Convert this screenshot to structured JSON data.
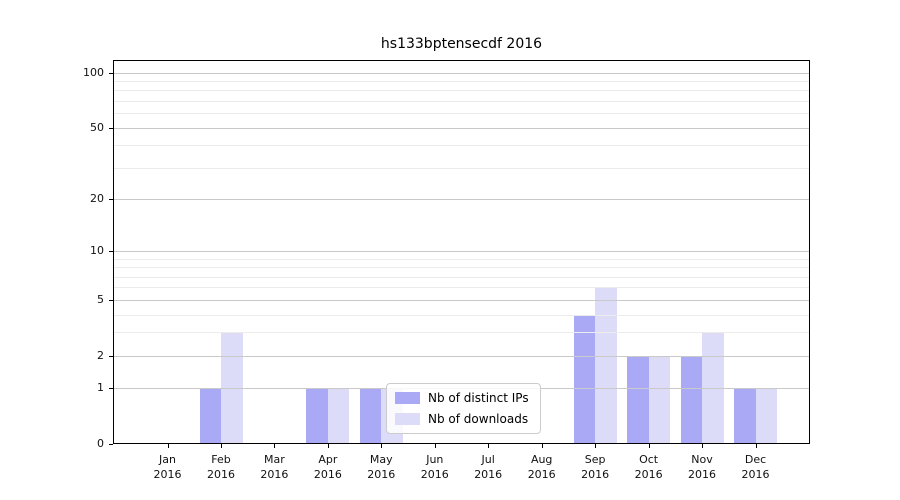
{
  "title": "hs133bptensecdf 2016",
  "legend": {
    "items": [
      {
        "label": "Nb of distinct IPs",
        "color": "#a9a9f5"
      },
      {
        "label": "Nb of downloads",
        "color": "#dcdcf9"
      }
    ]
  },
  "chart_data": {
    "type": "bar",
    "title": "hs133bptensecdf 2016",
    "categories": [
      "Jan 2016",
      "Feb 2016",
      "Mar 2016",
      "Apr 2016",
      "May 2016",
      "Jun 2016",
      "Jul 2016",
      "Aug 2016",
      "Sep 2016",
      "Oct 2016",
      "Nov 2016",
      "Dec 2016"
    ],
    "series": [
      {
        "name": "Nb of distinct IPs",
        "color": "#a9a9f5",
        "values": [
          0,
          1,
          0,
          1,
          1,
          0,
          0,
          0,
          4,
          2,
          2,
          1
        ]
      },
      {
        "name": "Nb of downloads",
        "color": "#dcdcf9",
        "values": [
          0,
          3,
          0,
          1,
          1,
          0,
          0,
          0,
          6,
          2,
          3,
          1
        ]
      }
    ],
    "xlabel": "",
    "ylabel": "",
    "yscale": "log1p",
    "yticks": [
      0,
      1,
      2,
      5,
      10,
      20,
      50,
      100
    ],
    "yticks_minor": [
      3,
      4,
      6,
      7,
      8,
      9,
      30,
      40,
      60,
      70,
      80,
      90
    ],
    "ylim": [
      0,
      117
    ],
    "grid": true,
    "legend_position": "lower center"
  }
}
